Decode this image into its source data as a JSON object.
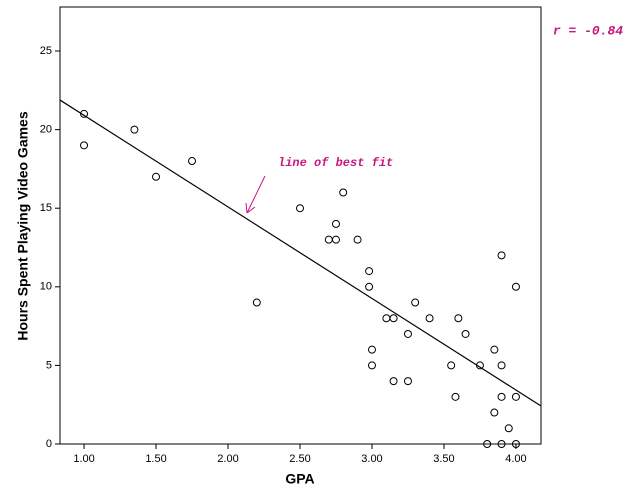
{
  "chart_data": {
    "type": "scatter",
    "x_label": "GPA",
    "y_label": "Hours Spent Playing Video Games",
    "x": [
      1.0,
      1.0,
      1.35,
      1.5,
      1.75,
      2.2,
      2.5,
      2.7,
      2.75,
      2.75,
      2.8,
      2.9,
      2.98,
      2.98,
      3.0,
      3.0,
      3.1,
      3.15,
      3.15,
      3.25,
      3.25,
      3.3,
      3.4,
      3.55,
      3.58,
      3.6,
      3.65,
      3.75,
      3.8,
      3.85,
      3.85,
      3.9,
      3.9,
      3.9,
      3.9,
      3.95,
      4.0,
      4.0,
      4.0
    ],
    "y": [
      21,
      19,
      20,
      17,
      18,
      9,
      15,
      13,
      13,
      14,
      16,
      13,
      11,
      10,
      6,
      5,
      8,
      8,
      4,
      7,
      4,
      9,
      8,
      5,
      3,
      8,
      7,
      5,
      0,
      6,
      2,
      12,
      5,
      3,
      0,
      1,
      10,
      3,
      0
    ],
    "marker_color": "#000000",
    "fit_line": {
      "x": [
        0.833,
        4.174
      ],
      "y": [
        21.88,
        2.42
      ],
      "color": "#000000"
    },
    "fit_label": "line of best fit",
    "r_label": "r = -0.84",
    "annotation_color": "#c8187e",
    "xlim": [
      0.833,
      4.174
    ],
    "ylim": [
      0,
      27.8
    ],
    "xticks": [
      {
        "value": 1,
        "label": "1.00"
      },
      {
        "value": 1.5,
        "label": "1.50"
      },
      {
        "value": 2,
        "label": "2.00"
      },
      {
        "value": 2.5,
        "label": "2.50"
      },
      {
        "value": 3,
        "label": "3.00"
      },
      {
        "value": 3.5,
        "label": "3.50"
      },
      {
        "value": 4,
        "label": "4.00"
      }
    ],
    "yticks": [
      0,
      5,
      10,
      15,
      20,
      25
    ],
    "grid": false
  }
}
